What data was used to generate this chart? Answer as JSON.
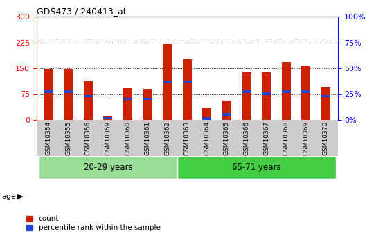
{
  "title": "GDS473 / 240413_at",
  "samples": [
    "GSM10354",
    "GSM10355",
    "GSM10356",
    "GSM10359",
    "GSM10360",
    "GSM10361",
    "GSM10362",
    "GSM10363",
    "GSM10364",
    "GSM10365",
    "GSM10366",
    "GSM10367",
    "GSM10368",
    "GSM10369",
    "GSM10370"
  ],
  "count_values": [
    148,
    147,
    112,
    12,
    92,
    90,
    220,
    175,
    35,
    55,
    138,
    138,
    168,
    155,
    95
  ],
  "percentile_values": [
    27,
    27,
    23,
    2,
    20,
    20,
    37,
    37,
    1,
    5,
    27,
    25,
    27,
    27,
    23
  ],
  "ylim_left": [
    0,
    300
  ],
  "ylim_right": [
    0,
    100
  ],
  "yticks_left": [
    0,
    75,
    150,
    225,
    300
  ],
  "yticks_right": [
    0,
    25,
    50,
    75,
    100
  ],
  "yticklabels_right": [
    "0%",
    "25%",
    "50%",
    "75%",
    "100%"
  ],
  "grid_lines": [
    75,
    150,
    225
  ],
  "bar_color": "#cc2200",
  "blue_color": "#2244cc",
  "group1_label": "20-29 years",
  "group2_label": "65-71 years",
  "group1_indices": [
    0,
    1,
    2,
    3,
    4,
    5,
    6
  ],
  "group2_indices": [
    7,
    8,
    9,
    10,
    11,
    12,
    13,
    14
  ],
  "group1_bg": "#99dd99",
  "group2_bg": "#44cc44",
  "xtick_bg": "#cccccc",
  "age_label": "age",
  "legend_count": "count",
  "legend_pct": "percentile rank within the sample",
  "bar_width": 0.45
}
